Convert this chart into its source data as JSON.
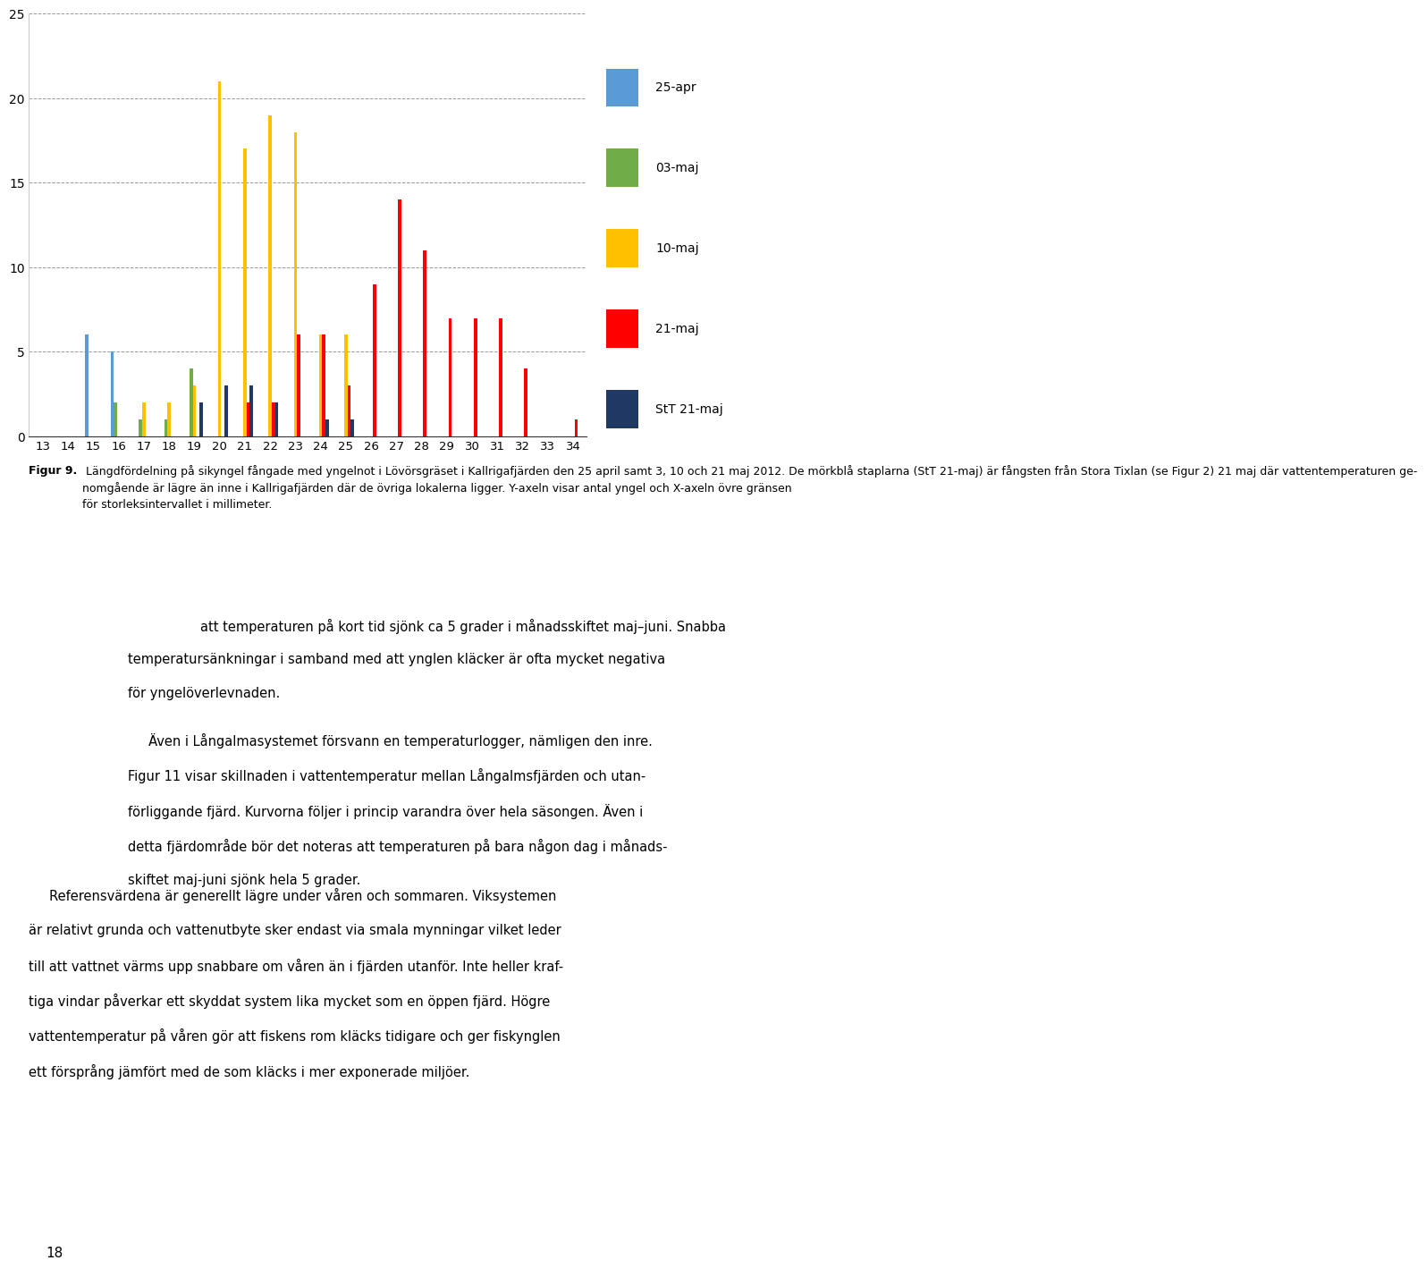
{
  "categories": [
    13,
    14,
    15,
    16,
    17,
    18,
    19,
    20,
    21,
    22,
    23,
    24,
    25,
    26,
    27,
    28,
    29,
    30,
    31,
    32,
    33,
    34
  ],
  "series": {
    "25-apr": {
      "color": "#5B9BD5",
      "values": [
        0,
        0,
        6,
        5,
        0,
        0,
        0,
        0,
        0,
        0,
        0,
        0,
        0,
        0,
        0,
        0,
        0,
        0,
        0,
        0,
        0,
        0
      ]
    },
    "03-maj": {
      "color": "#70AD47",
      "values": [
        0,
        0,
        0,
        2,
        1,
        1,
        4,
        0,
        0,
        0,
        0,
        0,
        0,
        0,
        0,
        0,
        0,
        0,
        0,
        0,
        0,
        0
      ]
    },
    "10-maj": {
      "color": "#FFC000",
      "values": [
        0,
        0,
        0,
        0,
        2,
        2,
        3,
        21,
        17,
        19,
        18,
        6,
        6,
        0,
        0,
        0,
        0,
        0,
        0,
        0,
        0,
        0
      ]
    },
    "21-maj": {
      "color": "#FF0000",
      "values": [
        0,
        0,
        0,
        0,
        0,
        0,
        0,
        0,
        2,
        2,
        6,
        6,
        3,
        9,
        14,
        11,
        7,
        7,
        7,
        4,
        0,
        1
      ]
    },
    "StT 21-maj": {
      "color": "#203864",
      "values": [
        0,
        0,
        0,
        0,
        0,
        0,
        2,
        3,
        3,
        2,
        0,
        1,
        1,
        0,
        0,
        0,
        0,
        0,
        0,
        0,
        0,
        0
      ]
    }
  },
  "ylim": [
    0,
    25
  ],
  "yticks": [
    0,
    5,
    10,
    15,
    20,
    25
  ],
  "background_color": "#FFFFFF",
  "grid_color": "#999999",
  "legend_labels": [
    "25-apr",
    "03-maj",
    "10-maj",
    "21-maj",
    "StT 21-maj"
  ],
  "bar_width": 0.13,
  "caption_bold": "Figur 9.",
  "caption_rest": " Längdfördelning på sikyngel fångade med yngelnot i Lövörsgräset i Kallrigafjärden den 25 april samt 3, 10 och 21 maj 2012. De mörkblå staplarna (StT 21-maj) är fångsten från Stora Tixlan (se Figur 2) 21 maj där vattentemperaturen genomgående är lägre än inne i Kallrigafjärden där de övriga lokalerna ligger. Y-axeln visar antal yngel och X-axeln övre gränsen för storleksintervallet i millimeter.",
  "body1_indent": "att temperaturen på kort tid sjönk ca 5 grader i månadsskiftet maj–juni. Snabba temperatursänkningar i samband med att ynglen kläcker är ofta mycket negativa för yngelöverlevnaden.",
  "body2": "Även i Långalmasystemet försvann en temperaturlogger, nämligen den inre. Figur 11 visar skillnaden i vattentemperatur mellan Långalmsфjärden och utanförliggande fjärd. Kurvorna följer i princip varandra över hela säsongen. Även i detta fjärdомрåde bör det noteras att temperaturen på bara någon dag i månadsskiftet maj-juni sjönk hela 5 grader.",
  "body3": "Referensvärdena är generellt lägre under våren och sommaren. Viksystemen är relativt grunda och vattenutbyte sker endast via smala mynningar vilket leder till att vattnet värms upp snabbare om våren än i fjärden utanför. Inte heller kraftiga vindar påverkar ett skyddat system lika mycket som en öppen fjärd. Högre vattentemperatur på våren gör att fiskens rom kläcks tidigare och ger fiskynglen ett förspring jämfört med de som kläcks i mer exponerade miljöer.",
  "page_number": "18"
}
